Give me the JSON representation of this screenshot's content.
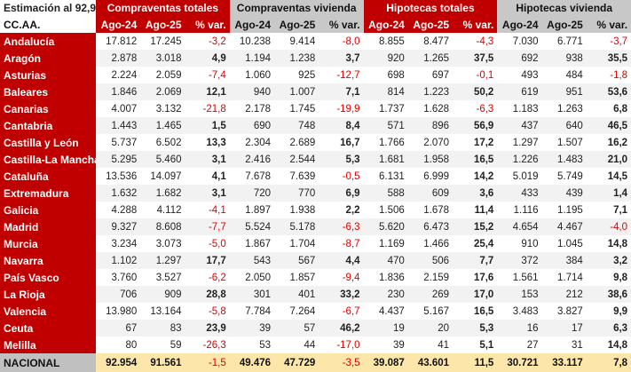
{
  "note": "Estimación al 92,9%",
  "region_header": "CC.AA.",
  "groups": [
    "Compraventas totales",
    "Compraventas vivienda",
    "Hipotecas totales",
    "Hipotecas vivienda"
  ],
  "subheaders": [
    "Ago-24",
    "Ago-25",
    "% var."
  ],
  "colors": {
    "red": "#C00000",
    "gray": "#C8C8C8",
    "negative": "#E00000",
    "total_bg": "#FCE6A9"
  },
  "rows": [
    {
      "region": "Andalucía",
      "values": [
        "17.812",
        "17.245",
        "-3,2",
        "10.238",
        "9.414",
        "-8,0",
        "8.855",
        "8.477",
        "-4,3",
        "7.030",
        "6.771",
        "-3,7"
      ]
    },
    {
      "region": "Aragón",
      "values": [
        "2.878",
        "3.018",
        "4,9",
        "1.194",
        "1.238",
        "3,7",
        "920",
        "1.265",
        "37,5",
        "692",
        "938",
        "35,5"
      ]
    },
    {
      "region": "Asturias",
      "values": [
        "2.224",
        "2.059",
        "-7,4",
        "1.060",
        "925",
        "-12,7",
        "698",
        "697",
        "-0,1",
        "493",
        "484",
        "-1,8"
      ]
    },
    {
      "region": "Baleares",
      "values": [
        "1.846",
        "2.069",
        "12,1",
        "940",
        "1.007",
        "7,1",
        "814",
        "1.223",
        "50,2",
        "619",
        "951",
        "53,6"
      ]
    },
    {
      "region": "Canarias",
      "values": [
        "4.007",
        "3.132",
        "-21,8",
        "2.178",
        "1.745",
        "-19,9",
        "1.737",
        "1.628",
        "-6,3",
        "1.183",
        "1.263",
        "6,8"
      ]
    },
    {
      "region": "Cantabria",
      "values": [
        "1.443",
        "1.465",
        "1,5",
        "690",
        "748",
        "8,4",
        "571",
        "896",
        "56,9",
        "437",
        "640",
        "46,5"
      ]
    },
    {
      "region": "Castilla y León",
      "values": [
        "5.737",
        "6.502",
        "13,3",
        "2.304",
        "2.689",
        "16,7",
        "1.766",
        "2.070",
        "17,2",
        "1.297",
        "1.507",
        "16,2"
      ]
    },
    {
      "region": "Castilla-La Mancha",
      "values": [
        "5.295",
        "5.460",
        "3,1",
        "2.416",
        "2.544",
        "5,3",
        "1.681",
        "1.958",
        "16,5",
        "1.226",
        "1.483",
        "21,0"
      ]
    },
    {
      "region": "Cataluña",
      "values": [
        "13.536",
        "14.097",
        "4,1",
        "7.678",
        "7.639",
        "-0,5",
        "6.131",
        "6.999",
        "14,2",
        "5.019",
        "5.749",
        "14,5"
      ]
    },
    {
      "region": "Extremadura",
      "values": [
        "1.632",
        "1.682",
        "3,1",
        "720",
        "770",
        "6,9",
        "588",
        "609",
        "3,6",
        "433",
        "439",
        "1,4"
      ]
    },
    {
      "region": "Galicia",
      "values": [
        "4.288",
        "4.112",
        "-4,1",
        "1.897",
        "1.938",
        "2,2",
        "1.506",
        "1.678",
        "11,4",
        "1.116",
        "1.195",
        "7,1"
      ]
    },
    {
      "region": "Madrid",
      "values": [
        "9.327",
        "8.608",
        "-7,7",
        "5.524",
        "5.178",
        "-6,3",
        "5.620",
        "6.473",
        "15,2",
        "4.654",
        "4.467",
        "-4,0"
      ]
    },
    {
      "region": "Murcia",
      "values": [
        "3.234",
        "3.073",
        "-5,0",
        "1.867",
        "1.704",
        "-8,7",
        "1.169",
        "1.466",
        "25,4",
        "910",
        "1.045",
        "14,8"
      ]
    },
    {
      "region": "Navarra",
      "values": [
        "1.102",
        "1.297",
        "17,7",
        "543",
        "567",
        "4,4",
        "470",
        "506",
        "7,7",
        "372",
        "384",
        "3,2"
      ]
    },
    {
      "region": "País Vasco",
      "values": [
        "3.760",
        "3.527",
        "-6,2",
        "2.050",
        "1.857",
        "-9,4",
        "1.836",
        "2.159",
        "17,6",
        "1.561",
        "1.714",
        "9,8"
      ]
    },
    {
      "region": "La Rioja",
      "values": [
        "706",
        "909",
        "28,8",
        "301",
        "401",
        "33,2",
        "230",
        "269",
        "17,0",
        "153",
        "212",
        "38,6"
      ]
    },
    {
      "region": "Valencia",
      "values": [
        "13.980",
        "13.164",
        "-5,8",
        "7.784",
        "7.264",
        "-6,7",
        "4.437",
        "5.167",
        "16,5",
        "3.483",
        "3.827",
        "9,9"
      ]
    },
    {
      "region": "Ceuta",
      "values": [
        "67",
        "83",
        "23,9",
        "39",
        "57",
        "46,2",
        "19",
        "20",
        "5,3",
        "16",
        "17",
        "6,3"
      ]
    },
    {
      "region": "Melilla",
      "values": [
        "80",
        "59",
        "-26,3",
        "53",
        "44",
        "-17,0",
        "39",
        "41",
        "5,1",
        "27",
        "31",
        "14,8"
      ]
    }
  ],
  "total": {
    "region": "NACIONAL",
    "values": [
      "92.954",
      "91.561",
      "-1,5",
      "49.476",
      "47.729",
      "-3,5",
      "39.087",
      "43.601",
      "11,5",
      "30.721",
      "33.117",
      "7,8"
    ]
  }
}
